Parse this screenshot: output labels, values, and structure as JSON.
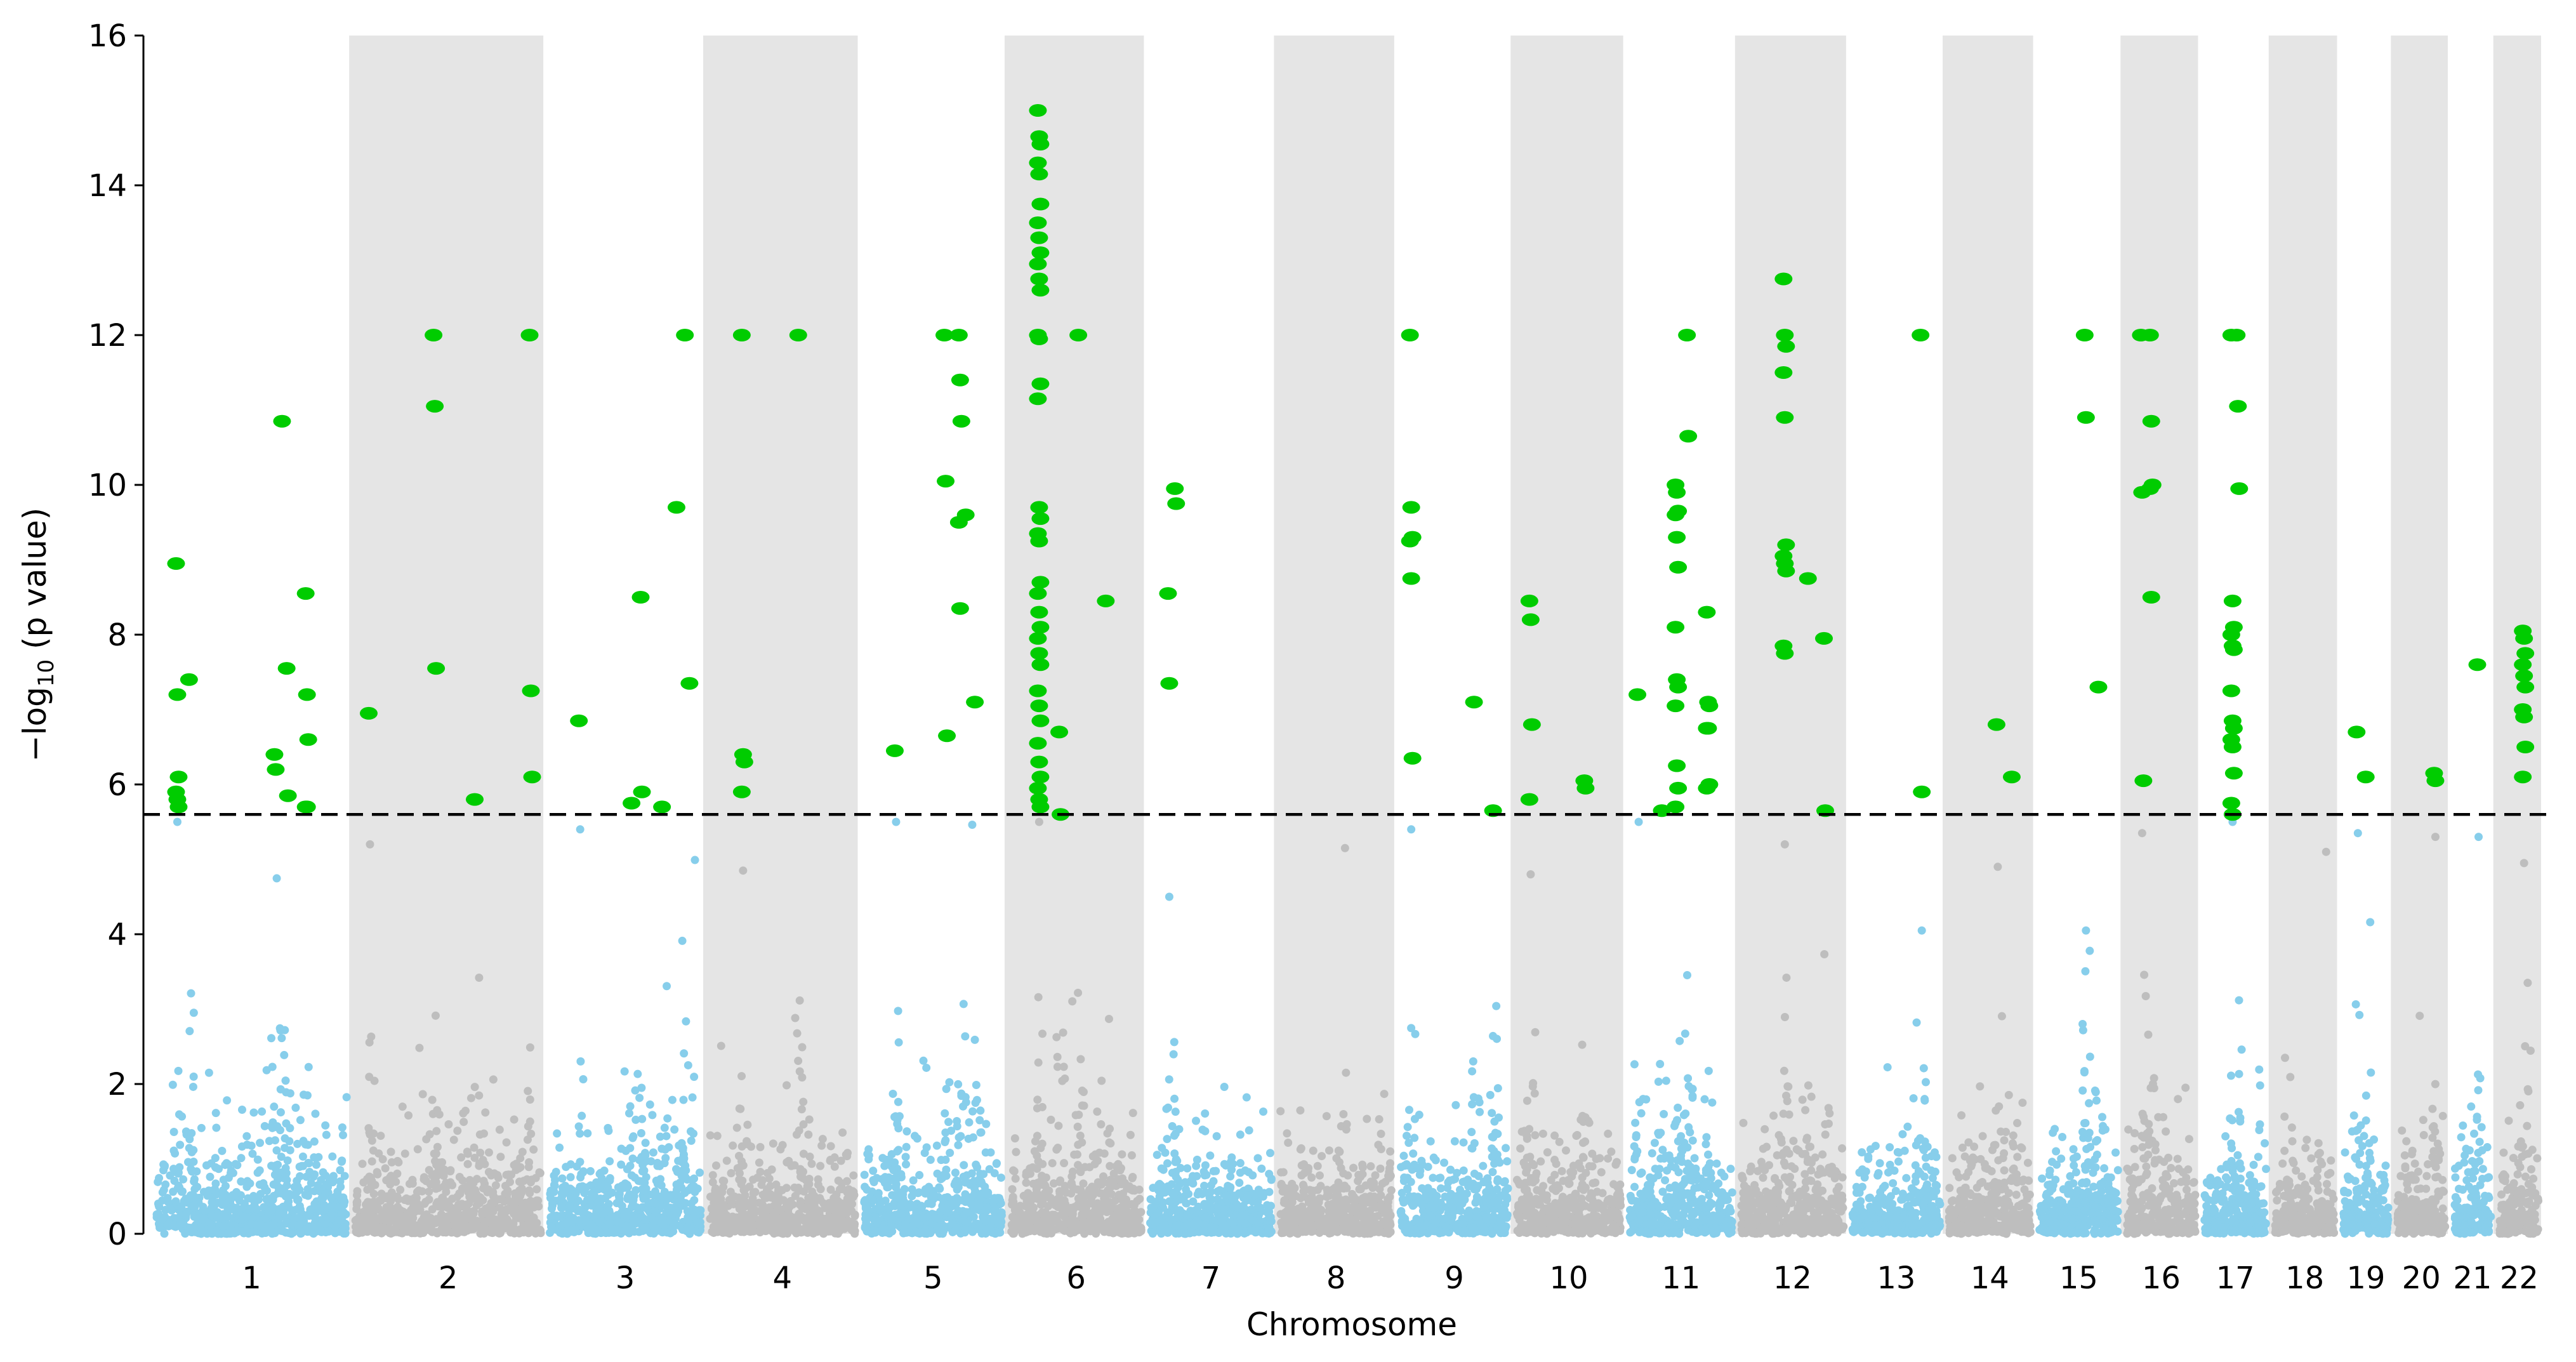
{
  "chart_data": {
    "type": "scatter",
    "subtype": "manhattan",
    "title": "",
    "xlabel": "Chromosome",
    "ylabel_prefix": "−log",
    "ylabel_sub": "10",
    "ylabel_suffix": " (p value)",
    "ylim": [
      0,
      16
    ],
    "yticks": [
      "0",
      "2",
      "4",
      "6",
      "8",
      "10",
      "12",
      "14",
      "16"
    ],
    "significance_threshold": 5.6,
    "grid": false,
    "legend": "none",
    "colors": {
      "odd_chromosome": "#87CEEB",
      "even_chromosome": "#BEBEBE",
      "significant": "#00CC00",
      "band": "#E5E5E5",
      "threshold_line": "#000000"
    },
    "chromosomes": [
      {
        "label": "1",
        "length_mb": 249,
        "background_max": 5.5
      },
      {
        "label": "2",
        "length_mb": 243,
        "background_max": 5.2
      },
      {
        "label": "3",
        "length_mb": 198,
        "background_max": 5.4
      },
      {
        "label": "4",
        "length_mb": 191,
        "background_max": 4.85
      },
      {
        "label": "5",
        "length_mb": 181,
        "background_max": 5.5
      },
      {
        "label": "6",
        "length_mb": 171,
        "background_max": 5.5
      },
      {
        "label": "7",
        "length_mb": 159,
        "background_max": 4.5
      },
      {
        "label": "8",
        "length_mb": 146,
        "background_max": 5.15
      },
      {
        "label": "9",
        "length_mb": 141,
        "background_max": 5.4
      },
      {
        "label": "10",
        "length_mb": 136,
        "background_max": 4.8
      },
      {
        "label": "11",
        "length_mb": 135,
        "background_max": 5.5
      },
      {
        "label": "12",
        "length_mb": 134,
        "background_max": 5.2
      },
      {
        "label": "13",
        "length_mb": 115,
        "background_max": 4.05
      },
      {
        "label": "14",
        "length_mb": 107,
        "background_max": 4.9
      },
      {
        "label": "15",
        "length_mb": 103,
        "background_max": 4.05
      },
      {
        "label": "16",
        "length_mb": 90,
        "background_max": 5.35
      },
      {
        "label": "17",
        "length_mb": 81,
        "background_max": 5.5
      },
      {
        "label": "18",
        "length_mb": 78,
        "background_max": 5.1
      },
      {
        "label": "19",
        "length_mb": 59,
        "background_max": 5.35
      },
      {
        "label": "20",
        "length_mb": 63,
        "background_max": 5.3
      },
      {
        "label": "21",
        "length_mb": 48,
        "background_max": 5.3
      },
      {
        "label": "22",
        "length_mb": 51,
        "background_max": 4.95
      }
    ],
    "significant_hits": [
      {
        "chr": 0,
        "pos_mb": 27,
        "values": [
          8.95,
          7.2,
          6.1,
          5.9,
          5.8,
          5.7
        ]
      },
      {
        "chr": 0,
        "pos_mb": 44,
        "values": [
          7.4
        ]
      },
      {
        "chr": 0,
        "pos_mb": 156,
        "values": [
          6.4,
          6.2
        ]
      },
      {
        "chr": 0,
        "pos_mb": 166,
        "values": [
          10.85
        ]
      },
      {
        "chr": 0,
        "pos_mb": 172,
        "values": [
          7.55,
          5.85
        ]
      },
      {
        "chr": 0,
        "pos_mb": 197,
        "values": [
          8.55,
          7.2,
          6.6,
          5.7,
          5.7
        ]
      },
      {
        "chr": 1,
        "pos_mb": 19,
        "values": [
          6.95
        ]
      },
      {
        "chr": 1,
        "pos_mb": 104,
        "values": [
          12.0,
          11.05,
          7.55
        ]
      },
      {
        "chr": 1,
        "pos_mb": 158,
        "values": [
          5.8
        ]
      },
      {
        "chr": 1,
        "pos_mb": 230,
        "values": [
          12.0,
          7.25,
          6.1
        ]
      },
      {
        "chr": 2,
        "pos_mb": 40,
        "values": [
          6.85
        ]
      },
      {
        "chr": 2,
        "pos_mb": 109,
        "values": [
          5.75
        ]
      },
      {
        "chr": 2,
        "pos_mb": 121,
        "values": [
          8.5,
          5.9
        ]
      },
      {
        "chr": 2,
        "pos_mb": 149,
        "values": [
          5.7
        ]
      },
      {
        "chr": 2,
        "pos_mb": 168,
        "values": [
          9.7
        ]
      },
      {
        "chr": 2,
        "pos_mb": 179,
        "values": [
          12.0
        ]
      },
      {
        "chr": 2,
        "pos_mb": 185,
        "values": [
          7.35
        ]
      },
      {
        "chr": 3,
        "pos_mb": 44,
        "values": [
          12.0,
          6.4,
          6.3,
          5.9
        ]
      },
      {
        "chr": 3,
        "pos_mb": 118,
        "values": [
          12.0
        ]
      },
      {
        "chr": 4,
        "pos_mb": 42,
        "values": [
          6.45
        ]
      },
      {
        "chr": 4,
        "pos_mb": 107,
        "values": [
          12.0,
          10.05,
          6.65
        ]
      },
      {
        "chr": 4,
        "pos_mb": 126,
        "values": [
          12.0,
          11.4,
          10.85,
          9.5,
          8.35
        ]
      },
      {
        "chr": 4,
        "pos_mb": 135,
        "values": [
          9.6
        ]
      },
      {
        "chr": 4,
        "pos_mb": 147,
        "values": [
          7.1
        ]
      },
      {
        "chr": 5,
        "pos_mb": 37,
        "values": [
          15.0,
          14.65,
          14.55,
          14.3,
          14.15,
          13.75,
          13.5,
          13.3,
          13.1,
          12.95,
          12.75,
          12.6,
          12.0,
          11.95,
          11.35,
          11.15,
          9.7,
          9.55,
          9.35,
          9.25,
          8.7,
          8.55,
          8.3,
          8.1,
          7.95,
          7.75,
          7.6,
          7.25,
          7.05,
          6.85,
          6.55,
          6.3,
          6.1,
          5.95,
          5.8,
          5.7
        ]
      },
      {
        "chr": 5,
        "pos_mb": 65,
        "values": [
          6.7,
          5.6
        ]
      },
      {
        "chr": 5,
        "pos_mb": 90,
        "values": [
          12.0
        ]
      },
      {
        "chr": 5,
        "pos_mb": 126,
        "values": [
          8.45
        ]
      },
      {
        "chr": 6,
        "pos_mb": 25,
        "values": [
          8.55,
          7.35
        ]
      },
      {
        "chr": 6,
        "pos_mb": 34,
        "values": [
          9.95,
          9.75
        ]
      },
      {
        "chr": 8,
        "pos_mb": 14,
        "values": [
          12.0,
          9.7,
          9.3,
          9.25,
          8.75,
          6.35
        ]
      },
      {
        "chr": 8,
        "pos_mb": 98,
        "values": [
          7.1
        ]
      },
      {
        "chr": 8,
        "pos_mb": 123,
        "values": [
          5.65
        ]
      },
      {
        "chr": 9,
        "pos_mb": 18,
        "values": [
          8.45,
          8.2,
          6.8,
          5.8
        ]
      },
      {
        "chr": 9,
        "pos_mb": 90,
        "values": [
          6.05,
          5.95
        ]
      },
      {
        "chr": 10,
        "pos_mb": 12,
        "values": [
          7.2
        ]
      },
      {
        "chr": 10,
        "pos_mb": 44,
        "values": [
          5.65
        ]
      },
      {
        "chr": 10,
        "pos_mb": 62,
        "values": [
          10.0,
          9.9,
          9.65,
          9.6,
          9.3,
          8.9,
          8.1,
          7.4,
          7.3,
          7.05,
          6.25,
          5.95,
          5.7
        ]
      },
      {
        "chr": 10,
        "pos_mb": 77,
        "values": [
          12.0,
          10.65
        ]
      },
      {
        "chr": 10,
        "pos_mb": 103,
        "values": [
          8.3,
          7.1,
          7.05,
          6.75,
          6.75,
          6.0,
          5.95
        ]
      },
      {
        "chr": 11,
        "pos_mb": 57,
        "values": [
          12.75,
          12.0,
          11.85,
          11.5,
          10.9,
          9.2,
          9.05,
          8.95,
          8.85,
          7.85,
          7.75
        ]
      },
      {
        "chr": 11,
        "pos_mb": 89,
        "values": [
          8.75
        ]
      },
      {
        "chr": 11,
        "pos_mb": 110,
        "values": [
          7.95,
          5.65
        ]
      },
      {
        "chr": 12,
        "pos_mb": 91,
        "values": [
          12.0,
          5.9
        ]
      },
      {
        "chr": 13,
        "pos_mb": 64,
        "values": [
          6.8
        ]
      },
      {
        "chr": 13,
        "pos_mb": 84,
        "values": [
          6.1
        ]
      },
      {
        "chr": 14,
        "pos_mb": 61,
        "values": [
          12.0,
          10.9
        ]
      },
      {
        "chr": 14,
        "pos_mb": 79,
        "values": [
          7.3
        ]
      },
      {
        "chr": 15,
        "pos_mb": 20,
        "values": [
          12.0,
          9.9,
          6.05
        ]
      },
      {
        "chr": 15,
        "pos_mb": 32,
        "values": [
          12.0,
          10.85,
          10.0,
          9.95,
          8.5
        ]
      },
      {
        "chr": 16,
        "pos_mb": 37,
        "values": [
          12.0,
          8.45,
          8.1,
          8.0,
          7.85,
          7.8,
          7.25,
          6.85,
          6.75,
          6.6,
          6.5,
          6.15,
          5.75,
          5.6
        ]
      },
      {
        "chr": 16,
        "pos_mb": 44,
        "values": [
          12.0,
          11.05,
          9.95
        ]
      },
      {
        "chr": 18,
        "pos_mb": 19,
        "values": [
          6.7
        ]
      },
      {
        "chr": 18,
        "pos_mb": 31,
        "values": [
          6.1
        ]
      },
      {
        "chr": 19,
        "pos_mb": 50,
        "values": [
          6.15,
          6.05
        ]
      },
      {
        "chr": 20,
        "pos_mb": 32,
        "values": [
          7.6
        ]
      },
      {
        "chr": 21,
        "pos_mb": 32,
        "values": [
          8.05,
          7.95,
          7.75,
          7.6,
          7.45,
          7.3,
          7.0,
          6.9,
          6.5,
          6.1
        ]
      }
    ]
  }
}
